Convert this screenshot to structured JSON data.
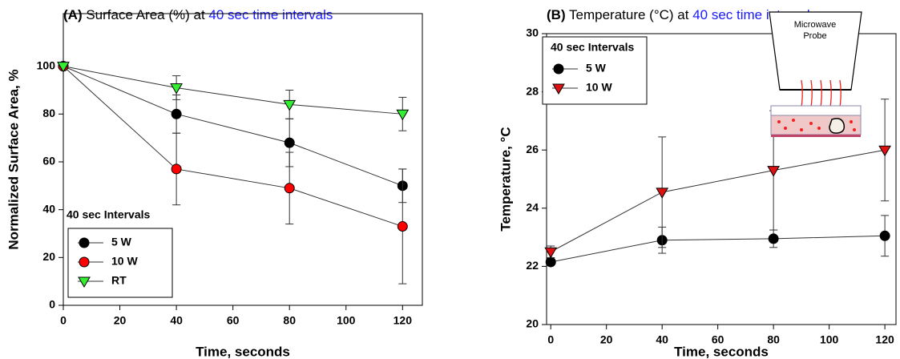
{
  "chart_data": [
    {
      "type": "line",
      "title_prefix": "(A)",
      "title": "Surface Area (%) at",
      "title_highlight": "40 sec time intervals",
      "xlabel": "Time, seconds",
      "ylabel": "Normalized Surface Area, %",
      "x": [
        0,
        40,
        80,
        120
      ],
      "series": [
        {
          "name": "5 W",
          "color": "#000000",
          "marker": "circle",
          "values": [
            100,
            80,
            68,
            50
          ],
          "errors": [
            0,
            8,
            10,
            7
          ]
        },
        {
          "name": "10 W",
          "color": "#ff0000",
          "marker": "circle",
          "values": [
            100,
            57,
            49,
            33
          ],
          "errors": [
            0,
            15,
            15,
            24
          ]
        },
        {
          "name": "RT",
          "color": "#33ee33",
          "marker": "triangle-down",
          "values": [
            100,
            91,
            84,
            80
          ],
          "errors": [
            0,
            5,
            6,
            7
          ]
        }
      ],
      "xlim": [
        0,
        127
      ],
      "ylim": [
        0,
        122
      ],
      "xticks": [
        0,
        20,
        40,
        60,
        80,
        100,
        120
      ],
      "yticks": [
        0,
        20,
        40,
        60,
        80,
        100
      ],
      "legend_title": "40 sec Intervals",
      "legend": "lower left"
    },
    {
      "type": "line",
      "title_prefix": "(B)",
      "title": "Temperature (°C) at",
      "title_highlight": "40 sec time intervals",
      "xlabel": "Time, seconds",
      "ylabel": "Temperature, °C",
      "x": [
        0,
        40,
        80,
        120
      ],
      "series": [
        {
          "name": "5 W",
          "color": "#000000",
          "marker": "circle",
          "values": [
            22.15,
            22.9,
            22.95,
            23.05
          ],
          "errors": [
            0.1,
            0.45,
            0.3,
            0.7
          ]
        },
        {
          "name": "10 W",
          "color": "#dd1111",
          "marker": "triangle-down",
          "values": [
            22.5,
            24.55,
            25.3,
            26.0
          ],
          "errors": [
            0.2,
            1.9,
            2.05,
            1.75
          ]
        }
      ],
      "xlim": [
        -1.5,
        124
      ],
      "ylim": [
        20,
        30
      ],
      "xticks": [
        0,
        20,
        40,
        60,
        80,
        100,
        120
      ],
      "yticks": [
        20,
        22,
        24,
        26,
        28,
        30
      ],
      "legend_title": "40 sec Intervals",
      "legend": "upper left",
      "inset_label": [
        "Microwave",
        "Probe"
      ]
    }
  ]
}
